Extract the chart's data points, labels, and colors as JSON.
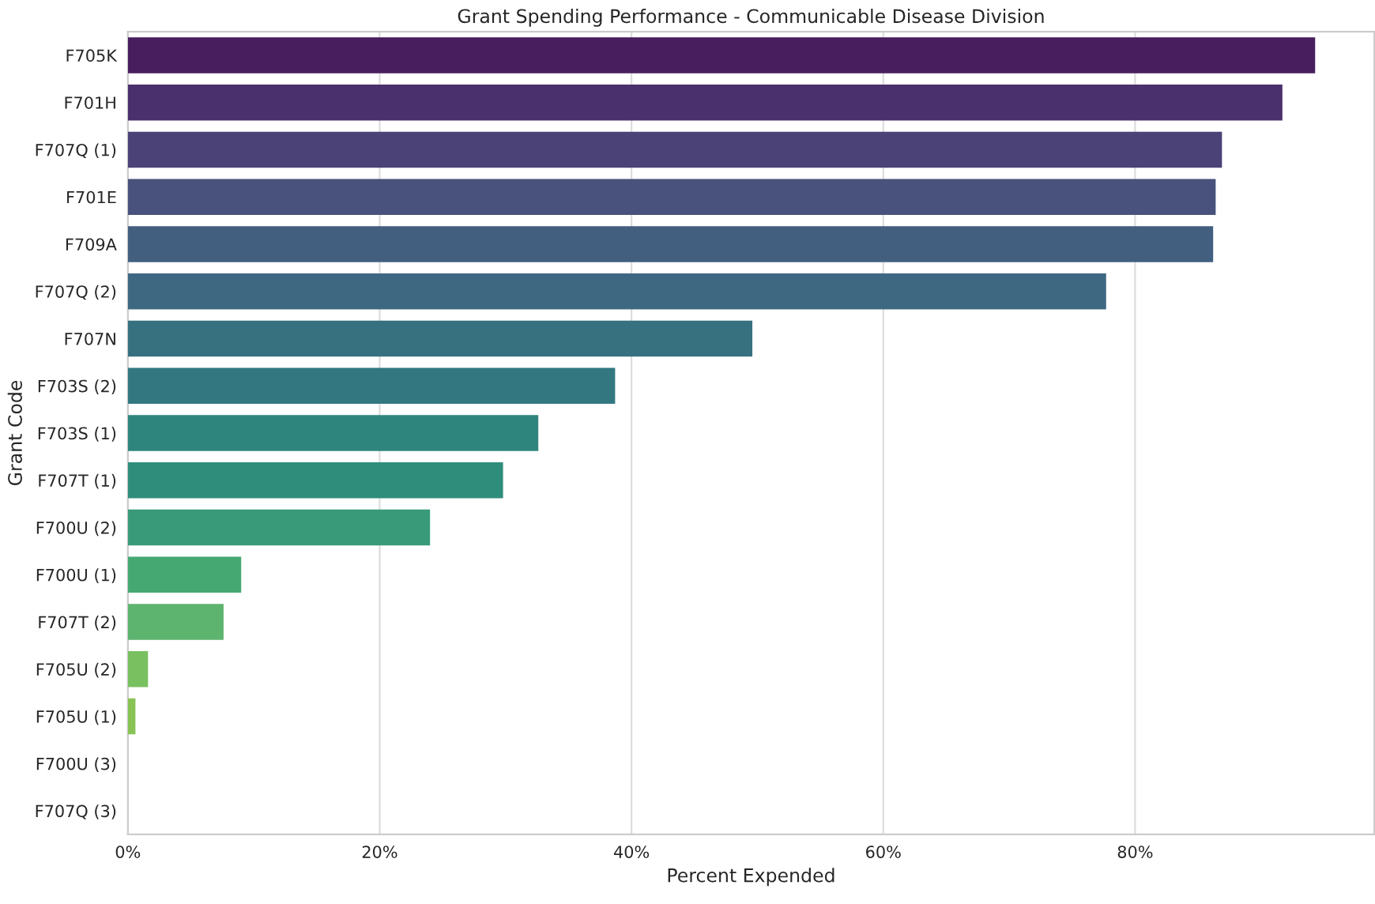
{
  "chart_data": {
    "type": "bar",
    "orientation": "horizontal",
    "title": "Grant Spending Performance - Communicable Disease Division",
    "xlabel": "Percent Expended",
    "ylabel": "Grant Code",
    "categories": [
      "F705K",
      "F701H",
      "F707Q (1)",
      "F701E",
      "F709A",
      "F707Q (2)",
      "F707N",
      "F703S (2)",
      "F703S (1)",
      "F707T (1)",
      "F700U (2)",
      "F700U (1)",
      "F707T (2)",
      "F705U (2)",
      "F705U (1)",
      "F700U (3)",
      "F707Q (3)"
    ],
    "values": [
      94.3,
      91.7,
      86.9,
      86.4,
      86.2,
      77.7,
      49.6,
      38.7,
      32.6,
      29.8,
      24.0,
      9.0,
      7.6,
      1.6,
      0.6,
      0,
      0
    ],
    "colors": [
      "#481e5e",
      "#4b306e",
      "#4b4277",
      "#48527c",
      "#425f80",
      "#3e6881",
      "#37707f",
      "#337880",
      "#2e857d",
      "#2f8d7b",
      "#389a79",
      "#45a872",
      "#5db46f",
      "#78c060",
      "#88c354",
      "#a8cd4a",
      "#c8d842"
    ],
    "xlim": [
      0,
      99
    ],
    "xticks": [
      {
        "value": 0,
        "label": "0%"
      },
      {
        "value": 20,
        "label": "20%"
      },
      {
        "value": 40,
        "label": "40%"
      },
      {
        "value": 60,
        "label": "60%"
      },
      {
        "value": 80,
        "label": "80%"
      }
    ],
    "grid": "x"
  }
}
